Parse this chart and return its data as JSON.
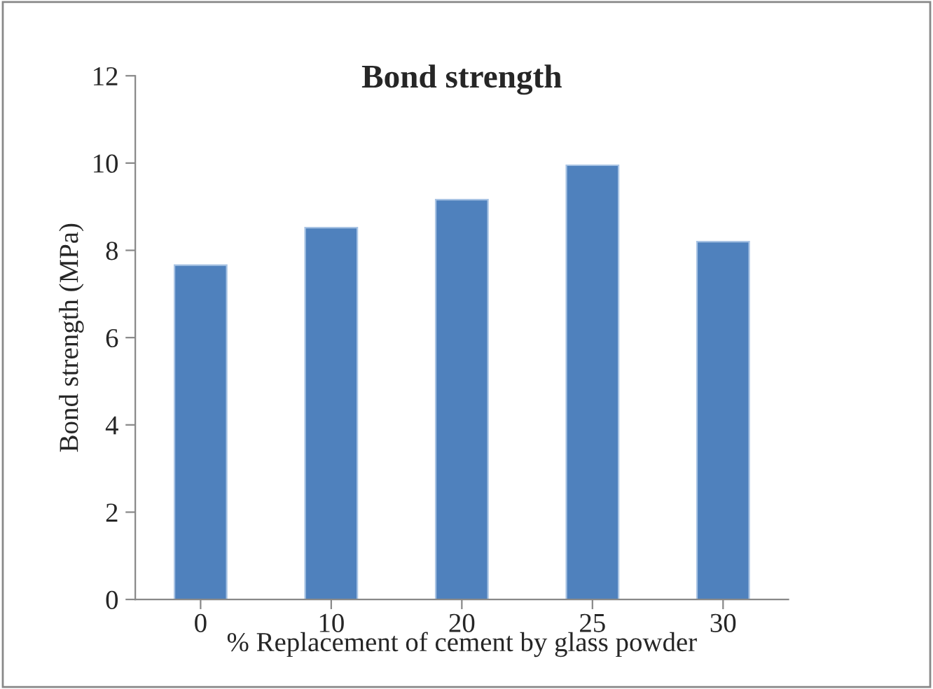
{
  "chart_data": {
    "type": "bar",
    "title": "Bond strength",
    "xlabel": "% Replacement of cement by glass powder",
    "ylabel": "Bond strength (MPa)",
    "categories": [
      "0",
      "10",
      "20",
      "25",
      "30"
    ],
    "values": [
      7.66,
      8.52,
      9.16,
      9.95,
      8.2
    ],
    "color": "#4f81bd",
    "ylim": [
      0,
      12
    ],
    "yticks": [
      0,
      2,
      4,
      6,
      8,
      10,
      12
    ],
    "grid": false,
    "legend": false
  }
}
